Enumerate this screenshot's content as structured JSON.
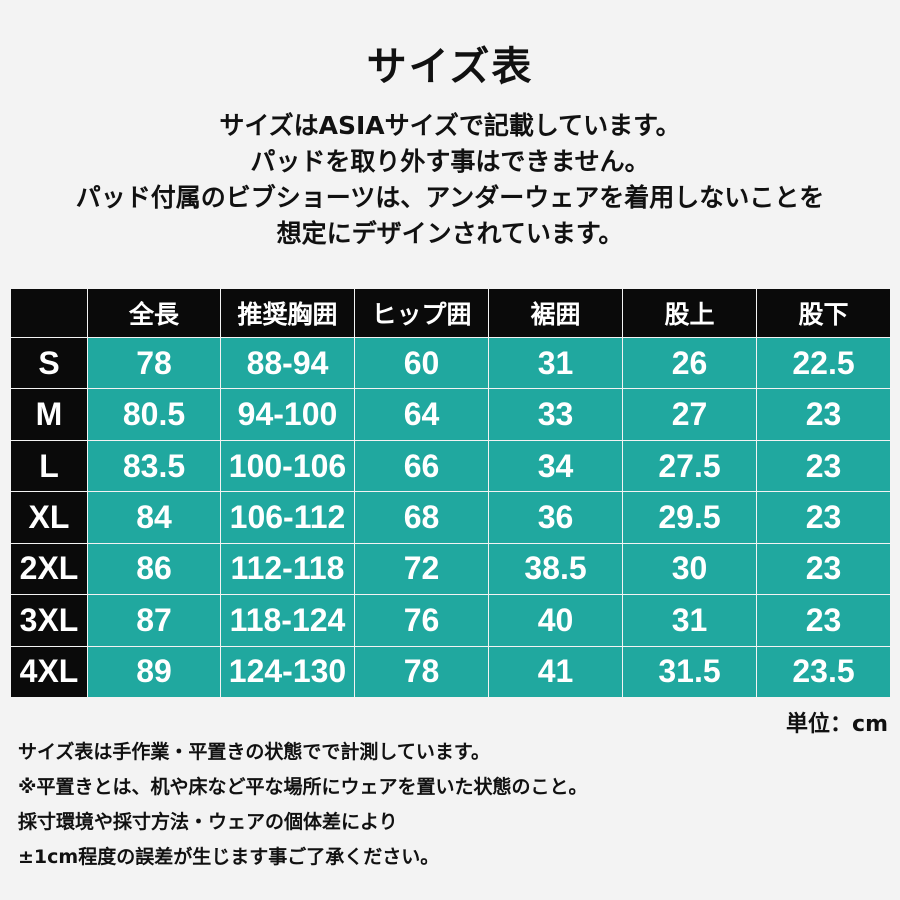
{
  "title": "サイズ表",
  "intro": [
    "サイズはASIAサイズで記載しています。",
    "パッドを取り外す事はできません。",
    "パッド付属のビブショーツは、アンダーウェアを着用しないことを",
    "想定にデザインされています。"
  ],
  "table": {
    "headers": [
      "",
      "全長",
      "推奨胸囲",
      "ヒップ囲",
      "裾囲",
      "股上",
      "股下"
    ],
    "rows": [
      {
        "size": "S",
        "values": [
          "78",
          "88-94",
          "60",
          "31",
          "26",
          "22.5"
        ]
      },
      {
        "size": "M",
        "values": [
          "80.5",
          "94-100",
          "64",
          "33",
          "27",
          "23"
        ]
      },
      {
        "size": "L",
        "values": [
          "83.5",
          "100-106",
          "66",
          "34",
          "27.5",
          "23"
        ]
      },
      {
        "size": "XL",
        "values": [
          "84",
          "106-112",
          "68",
          "36",
          "29.5",
          "23"
        ]
      },
      {
        "size": "2XL",
        "values": [
          "86",
          "112-118",
          "72",
          "38.5",
          "30",
          "23"
        ]
      },
      {
        "size": "3XL",
        "values": [
          "87",
          "118-124",
          "76",
          "40",
          "31",
          "23"
        ]
      },
      {
        "size": "4XL",
        "values": [
          "89",
          "124-130",
          "78",
          "41",
          "31.5",
          "23.5"
        ]
      }
    ]
  },
  "unit": "単位：cm",
  "notes": [
    "サイズ表は手作業・平置きの状態でで計測しています。",
    "※平置きとは、机や床など平な場所にウェアを置いた状態のこと。",
    "採寸環境や採寸方法・ウェアの個体差により",
    "±1cm程度の誤差が生じます事ご了承ください。"
  ]
}
